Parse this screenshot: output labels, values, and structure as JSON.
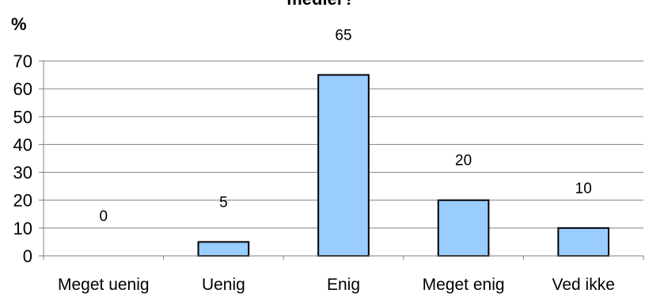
{
  "chart_data": {
    "type": "bar",
    "title": "medier?",
    "ylabel": "%",
    "xlabel": "",
    "categories": [
      "Meget uenig",
      "Uenig",
      "Enig",
      "Meget enig",
      "Ved ikke"
    ],
    "values": [
      0,
      5,
      65,
      20,
      10
    ],
    "data_labels": [
      "0",
      "5",
      "65",
      "20",
      "10"
    ],
    "ylim": [
      0,
      70
    ],
    "yticks": [
      0,
      10,
      20,
      30,
      40,
      50,
      60,
      70
    ],
    "grid": true,
    "legend": "none",
    "colors": {
      "bar_fill": "#99CCFF",
      "bar_stroke": "#000000",
      "grid": "#808080",
      "axis": "#808080"
    }
  }
}
